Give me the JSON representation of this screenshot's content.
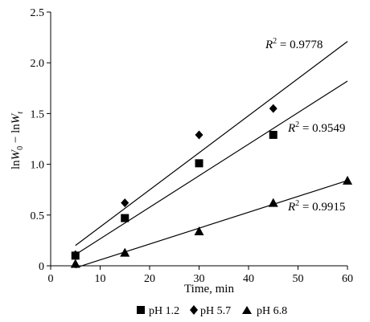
{
  "chart_data": {
    "type": "scatter",
    "xlabel": "Time, min",
    "ylabel": "lnW0 − lnWt",
    "ylabel_parts": {
      "a": "ln",
      "b": "W",
      "c": "0",
      "d": " − ln",
      "e": "W",
      "f": "t"
    },
    "xlim": [
      0,
      60
    ],
    "ylim": [
      0,
      2.5
    ],
    "xticks": [
      "0",
      "10",
      "20",
      "30",
      "40",
      "50",
      "60"
    ],
    "yticks": [
      "0",
      "0.5",
      "1.0",
      "1.5",
      "2.0",
      "2.5"
    ],
    "grid": false,
    "legend": "bottom",
    "series": [
      {
        "name": "pH 1.2",
        "marker": "square",
        "x": [
          5,
          15,
          30,
          45
        ],
        "y": [
          0.1,
          0.47,
          1.01,
          1.29
        ],
        "trend": {
          "x": [
            5,
            60
          ],
          "y": [
            0.11,
            1.82
          ]
        },
        "r2_label": {
          "prefix": "R",
          "sup": "2",
          "value": " = 0.9549"
        }
      },
      {
        "name": "pH 5.7",
        "marker": "diamond",
        "x": [
          5,
          15,
          30,
          45
        ],
        "y": [
          0.11,
          0.62,
          1.29,
          1.55
        ],
        "trend": {
          "x": [
            5,
            60
          ],
          "y": [
            0.2,
            2.21
          ]
        },
        "r2_label": {
          "prefix": "R",
          "sup": "2",
          "value": " = 0.9778"
        }
      },
      {
        "name": "pH 6.8",
        "marker": "triangle",
        "x": [
          5,
          15,
          30,
          45,
          60
        ],
        "y": [
          0.02,
          0.13,
          0.34,
          0.62,
          0.84
        ],
        "trend": {
          "x": [
            5,
            60
          ],
          "y": [
            -0.02,
            0.84
          ]
        },
        "r2_label": {
          "prefix": "R",
          "sup": "2",
          "value": " = 0.9915"
        }
      }
    ],
    "colors": {
      "ink": "#000000",
      "background": "#ffffff"
    }
  }
}
